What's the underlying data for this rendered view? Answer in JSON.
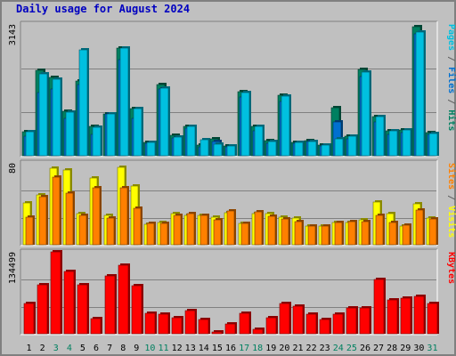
{
  "page": {
    "title": "Daily usage for August 2024"
  },
  "chart_data": [
    {
      "type": "bar",
      "title": "Daily usage for August 2024",
      "ylabel_parts": [
        {
          "text": "Pages",
          "color": "#00c0e0"
        },
        {
          "text": " / ",
          "color": "#606060"
        },
        {
          "text": "Files",
          "color": "#0070d0"
        },
        {
          "text": " / ",
          "color": "#606060"
        },
        {
          "text": "Hits",
          "color": "#008060"
        }
      ],
      "ymax_label": "3143",
      "ylim": [
        0,
        3143
      ],
      "grid": true,
      "categories": [
        "1",
        "2",
        "3",
        "4",
        "5",
        "6",
        "7",
        "8",
        "9",
        "10",
        "11",
        "12",
        "13",
        "14",
        "15",
        "16",
        "17",
        "18",
        "19",
        "20",
        "21",
        "22",
        "23",
        "24",
        "25",
        "26",
        "27",
        "28",
        "29",
        "30",
        "31"
      ],
      "weekend_days": [
        "3",
        "4",
        "10",
        "11",
        "17",
        "18",
        "24",
        "25",
        "31"
      ],
      "series": [
        {
          "name": "Hits",
          "color": "#008060",
          "values": [
            580,
            2033,
            1877,
            1071,
            1788,
            705,
            1003,
            2560,
            1132,
            325,
            1693,
            480,
            710,
            245,
            394,
            240,
            1529,
            697,
            367,
            1454,
            329,
            358,
            264,
            1141,
            462,
            2062,
            932,
            591,
            610,
            3076,
            560
          ]
        },
        {
          "name": "Files",
          "color": "#0070d0",
          "values": [
            458,
            1500,
            1600,
            900,
            1700,
            500,
            1000,
            2300,
            900,
            290,
            1600,
            420,
            650,
            220,
            350,
            210,
            1400,
            600,
            300,
            1300,
            290,
            330,
            240,
            800,
            400,
            1900,
            800,
            500,
            550,
            2900,
            500
          ]
        },
        {
          "name": "Pages",
          "color": "#00c0e0",
          "values": [
            580,
            1963,
            1816,
            1039,
            2537,
            681,
            1003,
            2570,
            1132,
            325,
            1618,
            442,
            710,
            377,
            267,
            240,
            1510,
            697,
            350,
            1425,
            325,
            349,
            256,
            404,
            462,
            1996,
            932,
            591,
            610,
            2951,
            541
          ]
        }
      ]
    },
    {
      "type": "bar",
      "ylabel_parts": [
        {
          "text": "Sites",
          "color": "#ff8000"
        },
        {
          "text": " / ",
          "color": "#606060"
        },
        {
          "text": "Visits",
          "color": "#ffff00"
        }
      ],
      "ymax_label": "80",
      "ylim": [
        0,
        80
      ],
      "grid": true,
      "categories": [
        "1",
        "2",
        "3",
        "4",
        "5",
        "6",
        "7",
        "8",
        "9",
        "10",
        "11",
        "12",
        "13",
        "14",
        "15",
        "16",
        "17",
        "18",
        "19",
        "20",
        "21",
        "22",
        "23",
        "24",
        "25",
        "26",
        "27",
        "28",
        "29",
        "30",
        "31"
      ],
      "series": [
        {
          "name": "Visits",
          "color": "#ffff00",
          "values": [
            41,
            49,
            75,
            73,
            30,
            65,
            29,
            76,
            57,
            20,
            22,
            30,
            29,
            29,
            27,
            31,
            21,
            30,
            30,
            27,
            26,
            18,
            18,
            22,
            22,
            24,
            42,
            30,
            18,
            40,
            26
          ]
        },
        {
          "name": "Sites",
          "color": "#ff8000",
          "values": [
            27,
            47,
            66,
            50,
            29,
            56,
            26,
            56,
            36,
            21,
            21,
            29,
            30,
            29,
            24,
            33,
            21,
            32,
            28,
            25,
            23,
            18,
            18,
            22,
            23,
            23,
            29,
            22,
            19,
            34,
            25
          ]
        }
      ]
    },
    {
      "type": "bar",
      "ylabel_parts": [
        {
          "text": "KBytes",
          "color": "#ff0000"
        }
      ],
      "ymax_label": "134499",
      "ylim": [
        0,
        134499
      ],
      "grid": true,
      "categories": [
        "1",
        "2",
        "3",
        "4",
        "5",
        "6",
        "7",
        "8",
        "9",
        "10",
        "11",
        "12",
        "13",
        "14",
        "15",
        "16",
        "17",
        "18",
        "19",
        "20",
        "21",
        "22",
        "23",
        "24",
        "25",
        "26",
        "27",
        "28",
        "29",
        "30",
        "31"
      ],
      "series": [
        {
          "name": "KBytes",
          "color": "#ff0000",
          "values": [
            50400,
            79900,
            134499,
            102500,
            80600,
            24300,
            94600,
            112000,
            79100,
            34000,
            32100,
            26200,
            37800,
            23700,
            3000,
            16700,
            33300,
            7600,
            25800,
            49000,
            45400,
            32700,
            23200,
            32700,
            42900,
            42500,
            88700,
            56000,
            57900,
            61200,
            49000
          ]
        }
      ]
    }
  ]
}
